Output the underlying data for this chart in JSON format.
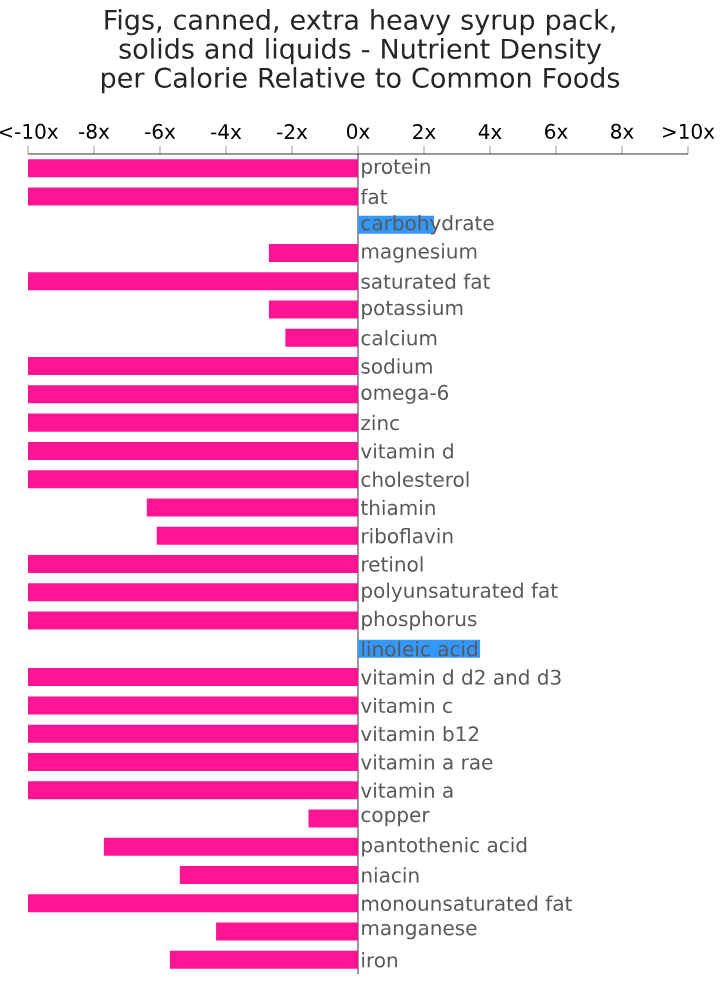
{
  "chart_data": {
    "type": "bar",
    "orientation": "horizontal",
    "title": "Figs, canned, extra heavy syrup pack, solids and liquids - Nutrient Density per Calorie Relative to Common Foods",
    "categories": [
      "protein",
      "fat",
      "carbohydrate",
      "magnesium",
      "saturated fat",
      "potassium",
      "calcium",
      "sodium",
      "omega-6",
      "zinc",
      "vitamin d",
      "cholesterol",
      "thiamin",
      "riboflavin",
      "retinol",
      "polyunsaturated fat",
      "phosphorus",
      "linoleic acid",
      "vitamin d d2 and d3",
      "vitamin c",
      "vitamin b12",
      "vitamin a rae",
      "vitamin a",
      "copper",
      "pantothenic acid",
      "niacin",
      "monounsaturated fat",
      "manganese",
      "iron"
    ],
    "values": [
      -10,
      -10,
      2.3,
      -2.7,
      -10,
      -2.7,
      -2.2,
      -10,
      -10,
      -10,
      -10,
      -10,
      -6.4,
      -6.1,
      -10,
      -10,
      -10,
      3.7,
      -10,
      -10,
      -10,
      -10,
      -10,
      -1.5,
      -7.7,
      -5.4,
      -10,
      -4.3,
      -5.7
    ],
    "colors": [
      "#ff1493",
      "#ff1493",
      "#3399ff",
      "#ff1493",
      "#ff1493",
      "#ff1493",
      "#ff1493",
      "#ff1493",
      "#ff1493",
      "#ff1493",
      "#ff1493",
      "#ff1493",
      "#ff1493",
      "#ff1493",
      "#ff1493",
      "#ff1493",
      "#ff1493",
      "#3399ff",
      "#ff1493",
      "#ff1493",
      "#ff1493",
      "#ff1493",
      "#ff1493",
      "#ff1493",
      "#ff1493",
      "#ff1493",
      "#ff1493",
      "#ff1493",
      "#ff1493"
    ],
    "xlim": [
      -10,
      10
    ],
    "xticks": [
      {
        "value": -10,
        "label": "<-10x"
      },
      {
        "value": -8,
        "label": "-8x"
      },
      {
        "value": -6,
        "label": "-6x"
      },
      {
        "value": -4,
        "label": "-4x"
      },
      {
        "value": -2,
        "label": "-2x"
      },
      {
        "value": 0,
        "label": "0x"
      },
      {
        "value": 2,
        "label": "2x"
      },
      {
        "value": 4,
        "label": "4x"
      },
      {
        "value": 6,
        "label": "6x"
      },
      {
        "value": 8,
        "label": "8x"
      },
      {
        "value": 10,
        "label": ">10x"
      }
    ],
    "grid": false
  }
}
